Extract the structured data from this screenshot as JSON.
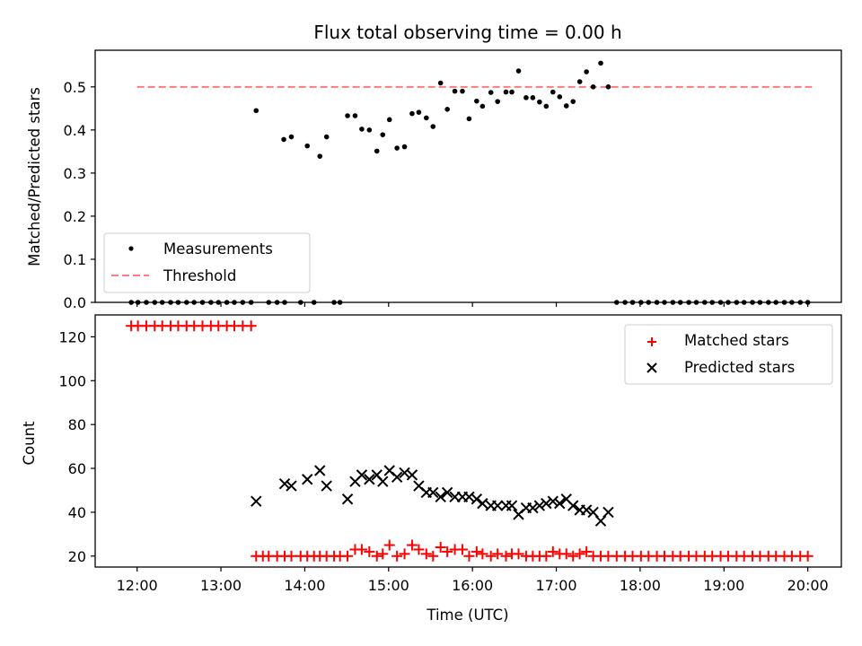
{
  "chart_data": [
    {
      "type": "scatter",
      "title": "Flux total observing time = 0.00 h",
      "xlabel": "",
      "ylabel": "Matched/Predicted stars",
      "ylim": [
        0,
        0.585
      ],
      "yticks": [
        "0.0",
        "0.1",
        "0.2",
        "0.3",
        "0.4",
        "0.5"
      ],
      "legend": {
        "position": "lower-left",
        "entries": [
          "Measurements",
          "Threshold"
        ]
      },
      "colors": {
        "measurements": "#000000",
        "threshold": "#ff7a7a"
      },
      "series": [
        {
          "name": "Measurements",
          "marker": "dot",
          "points": [
            [
              11.93,
              0
            ],
            [
              12.01,
              0
            ],
            [
              12.11,
              0
            ],
            [
              12.21,
              0
            ],
            [
              12.3,
              0
            ],
            [
              12.4,
              0
            ],
            [
              12.49,
              0
            ],
            [
              12.59,
              0
            ],
            [
              12.68,
              0
            ],
            [
              12.78,
              0
            ],
            [
              12.88,
              0
            ],
            [
              12.97,
              0
            ],
            [
              13.07,
              0
            ],
            [
              13.16,
              0
            ],
            [
              13.26,
              0
            ],
            [
              13.36,
              0
            ],
            [
              13.42,
              0.445
            ],
            [
              13.57,
              0
            ],
            [
              13.67,
              0
            ],
            [
              13.76,
              0
            ],
            [
              13.75,
              0.378
            ],
            [
              13.84,
              0.384
            ],
            [
              13.95,
              0
            ],
            [
              14.03,
              0.363
            ],
            [
              14.11,
              0
            ],
            [
              14.18,
              0.339
            ],
            [
              14.26,
              0.384
            ],
            [
              14.35,
              0
            ],
            [
              14.42,
              0
            ],
            [
              14.51,
              0.433
            ],
            [
              14.6,
              0.433
            ],
            [
              14.68,
              0.402
            ],
            [
              14.77,
              0.4
            ],
            [
              14.86,
              0.351
            ],
            [
              14.93,
              0.389
            ],
            [
              15.01,
              0.424
            ],
            [
              15.1,
              0.358
            ],
            [
              15.19,
              0.361
            ],
            [
              15.28,
              0.438
            ],
            [
              15.36,
              0.441
            ],
            [
              15.45,
              0.428
            ],
            [
              15.53,
              0.408
            ],
            [
              15.62,
              0.509
            ],
            [
              15.7,
              0.448
            ],
            [
              15.79,
              0.49
            ],
            [
              15.88,
              0.49
            ],
            [
              15.96,
              0.426
            ],
            [
              16.05,
              0.467
            ],
            [
              16.12,
              0.455
            ],
            [
              16.22,
              0.487
            ],
            [
              16.3,
              0.466
            ],
            [
              16.4,
              0.488
            ],
            [
              16.47,
              0.488
            ],
            [
              16.55,
              0.537
            ],
            [
              16.64,
              0.475
            ],
            [
              16.72,
              0.475
            ],
            [
              16.8,
              0.465
            ],
            [
              16.88,
              0.455
            ],
            [
              16.96,
              0.488
            ],
            [
              17.04,
              0.477
            ],
            [
              17.12,
              0.456
            ],
            [
              17.2,
              0.466
            ],
            [
              17.28,
              0.512
            ],
            [
              17.36,
              0.535
            ],
            [
              17.44,
              0.5
            ],
            [
              17.53,
              0.555
            ],
            [
              17.62,
              0.5
            ],
            [
              17.72,
              0
            ],
            [
              17.82,
              0
            ],
            [
              17.91,
              0
            ],
            [
              18.01,
              0
            ],
            [
              18.1,
              0
            ],
            [
              18.2,
              0
            ],
            [
              18.29,
              0
            ],
            [
              18.39,
              0
            ],
            [
              18.48,
              0
            ],
            [
              18.58,
              0
            ],
            [
              18.67,
              0
            ],
            [
              18.77,
              0
            ],
            [
              18.86,
              0
            ],
            [
              18.96,
              0
            ],
            [
              19.05,
              0
            ],
            [
              19.15,
              0
            ],
            [
              19.24,
              0
            ],
            [
              19.34,
              0
            ],
            [
              19.43,
              0
            ],
            [
              19.53,
              0
            ],
            [
              19.62,
              0
            ],
            [
              19.72,
              0
            ],
            [
              19.81,
              0
            ],
            [
              19.91,
              0
            ],
            [
              20.0,
              0
            ]
          ]
        },
        {
          "name": "Threshold",
          "line": "dashed",
          "points": [
            [
              12.0,
              0.5
            ],
            [
              20.05,
              0.5
            ]
          ]
        }
      ]
    },
    {
      "type": "scatter",
      "xlabel": "Time (UTC)",
      "ylabel": "Count",
      "xlim": [
        11.5,
        20.4
      ],
      "ylim": [
        15,
        130
      ],
      "xticks": [
        "12:00",
        "13:00",
        "14:00",
        "15:00",
        "16:00",
        "17:00",
        "18:00",
        "19:00",
        "20:00"
      ],
      "yticks": [
        "20",
        "40",
        "60",
        "80",
        "100",
        "120"
      ],
      "legend": {
        "position": "top-right",
        "entries": [
          "Matched stars",
          "Predicted stars"
        ]
      },
      "colors": {
        "matched": "#ff0000",
        "predicted": "#000000"
      },
      "series": [
        {
          "name": "Matched stars",
          "marker": "plus",
          "points": [
            [
              11.93,
              125
            ],
            [
              12.01,
              125
            ],
            [
              12.11,
              125
            ],
            [
              12.21,
              125
            ],
            [
              12.3,
              125
            ],
            [
              12.4,
              125
            ],
            [
              12.49,
              125
            ],
            [
              12.59,
              125
            ],
            [
              12.68,
              125
            ],
            [
              12.78,
              125
            ],
            [
              12.88,
              125
            ],
            [
              12.97,
              125
            ],
            [
              13.07,
              125
            ],
            [
              13.16,
              125
            ],
            [
              13.26,
              125
            ],
            [
              13.36,
              125
            ],
            [
              13.42,
              20
            ],
            [
              13.5,
              20
            ],
            [
              13.57,
              20
            ],
            [
              13.67,
              20
            ],
            [
              13.76,
              20
            ],
            [
              13.84,
              20
            ],
            [
              13.95,
              20
            ],
            [
              14.03,
              20
            ],
            [
              14.11,
              20
            ],
            [
              14.18,
              20
            ],
            [
              14.26,
              20
            ],
            [
              14.35,
              20
            ],
            [
              14.42,
              20
            ],
            [
              14.51,
              20
            ],
            [
              14.6,
              23
            ],
            [
              14.68,
              23
            ],
            [
              14.77,
              22
            ],
            [
              14.86,
              20
            ],
            [
              14.93,
              21
            ],
            [
              15.01,
              25
            ],
            [
              15.1,
              20
            ],
            [
              15.19,
              21
            ],
            [
              15.28,
              25
            ],
            [
              15.36,
              23
            ],
            [
              15.45,
              21
            ],
            [
              15.53,
              20
            ],
            [
              15.62,
              24
            ],
            [
              15.7,
              22
            ],
            [
              15.79,
              23
            ],
            [
              15.88,
              23
            ],
            [
              15.96,
              20
            ],
            [
              16.05,
              22
            ],
            [
              16.12,
              21
            ],
            [
              16.22,
              20
            ],
            [
              16.3,
              21
            ],
            [
              16.4,
              20
            ],
            [
              16.47,
              21
            ],
            [
              16.55,
              21
            ],
            [
              16.64,
              20
            ],
            [
              16.72,
              20
            ],
            [
              16.8,
              20
            ],
            [
              16.88,
              20
            ],
            [
              16.96,
              22
            ],
            [
              17.04,
              21
            ],
            [
              17.12,
              21
            ],
            [
              17.2,
              20
            ],
            [
              17.28,
              21
            ],
            [
              17.36,
              22
            ],
            [
              17.44,
              20
            ],
            [
              17.53,
              20
            ],
            [
              17.62,
              20
            ],
            [
              17.72,
              20
            ],
            [
              17.82,
              20
            ],
            [
              17.91,
              20
            ],
            [
              18.01,
              20
            ],
            [
              18.1,
              20
            ],
            [
              18.2,
              20
            ],
            [
              18.29,
              20
            ],
            [
              18.39,
              20
            ],
            [
              18.48,
              20
            ],
            [
              18.58,
              20
            ],
            [
              18.67,
              20
            ],
            [
              18.77,
              20
            ],
            [
              18.86,
              20
            ],
            [
              18.96,
              20
            ],
            [
              19.05,
              20
            ],
            [
              19.15,
              20
            ],
            [
              19.24,
              20
            ],
            [
              19.34,
              20
            ],
            [
              19.43,
              20
            ],
            [
              19.53,
              20
            ],
            [
              19.62,
              20
            ],
            [
              19.72,
              20
            ],
            [
              19.81,
              20
            ],
            [
              19.91,
              20
            ],
            [
              20.0,
              20
            ]
          ]
        },
        {
          "name": "Predicted stars",
          "marker": "x",
          "points": [
            [
              13.42,
              45
            ],
            [
              13.76,
              53
            ],
            [
              13.84,
              52
            ],
            [
              14.03,
              55
            ],
            [
              14.18,
              59
            ],
            [
              14.26,
              52
            ],
            [
              14.51,
              46
            ],
            [
              14.6,
              54
            ],
            [
              14.68,
              57
            ],
            [
              14.77,
              55
            ],
            [
              14.86,
              57
            ],
            [
              14.93,
              54
            ],
            [
              15.01,
              59
            ],
            [
              15.1,
              56
            ],
            [
              15.19,
              58
            ],
            [
              15.28,
              57
            ],
            [
              15.36,
              52
            ],
            [
              15.45,
              49
            ],
            [
              15.53,
              49
            ],
            [
              15.62,
              47
            ],
            [
              15.7,
              49
            ],
            [
              15.79,
              47
            ],
            [
              15.88,
              47
            ],
            [
              15.96,
              47
            ],
            [
              16.05,
              46
            ],
            [
              16.12,
              44
            ],
            [
              16.22,
              43
            ],
            [
              16.3,
              43
            ],
            [
              16.4,
              43
            ],
            [
              16.47,
              43
            ],
            [
              16.55,
              39
            ],
            [
              16.64,
              42
            ],
            [
              16.72,
              42
            ],
            [
              16.8,
              43
            ],
            [
              16.88,
              44
            ],
            [
              16.96,
              45
            ],
            [
              17.04,
              44
            ],
            [
              17.12,
              46
            ],
            [
              17.2,
              43
            ],
            [
              17.28,
              41
            ],
            [
              17.36,
              41
            ],
            [
              17.44,
              40
            ],
            [
              17.53,
              36
            ],
            [
              17.62,
              40
            ]
          ]
        }
      ]
    }
  ]
}
